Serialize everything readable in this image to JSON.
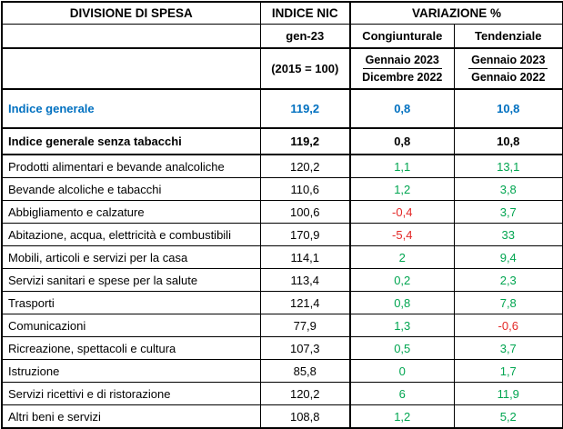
{
  "colors": {
    "accent_blue": "#0070c0",
    "positive_green": "#00a550",
    "negative_red": "#e32726",
    "border_black": "#000000"
  },
  "header": {
    "col_division": "DIVISIONE DI SPESA",
    "col_index": "INDICE NIC",
    "col_variation": "VARIAZIONE %",
    "index_period": "gen-23",
    "index_base": "(2015 = 100)",
    "sub_congiunturale": "Congiunturale",
    "sub_tendenziale": "Tendenziale",
    "congiunturale_numerator": "Gennaio 2023",
    "congiunturale_denominator": "Dicembre 2022",
    "tendenziale_numerator": "Gennaio 2023",
    "tendenziale_denominator": "Gennaio 2022"
  },
  "chart_data": {
    "type": "table",
    "title": "",
    "columns": [
      "DIVISIONE DI SPESA",
      "INDICE NIC gen-23 (2015 = 100)",
      "VARIAZIONE % Congiunturale (Gennaio 2023 / Dicembre 2022)",
      "VARIAZIONE % Tendenziale (Gennaio 2023 / Gennaio 2022)"
    ],
    "rows": [
      {
        "division": "Indice generale",
        "indice_nic": "119,2",
        "congiunturale": "0,8",
        "tendenziale": "10,8",
        "emphasis": "primary"
      },
      {
        "division": "Indice generale senza tabacchi",
        "indice_nic": "119,2",
        "congiunturale": "0,8",
        "tendenziale": "10,8",
        "emphasis": "strong"
      },
      {
        "division": "Prodotti alimentari e bevande analcoliche",
        "indice_nic": "120,2",
        "congiunturale": "1,1",
        "tendenziale": "13,1"
      },
      {
        "division": "Bevande alcoliche e tabacchi",
        "indice_nic": "110,6",
        "congiunturale": "1,2",
        "tendenziale": "3,8"
      },
      {
        "division": "Abbigliamento e calzature",
        "indice_nic": "100,6",
        "congiunturale": "-0,4",
        "tendenziale": "3,7"
      },
      {
        "division": "Abitazione, acqua, elettricità e combustibili",
        "indice_nic": "170,9",
        "congiunturale": "-5,4",
        "tendenziale": "33"
      },
      {
        "division": "Mobili, articoli e servizi per la casa",
        "indice_nic": "114,1",
        "congiunturale": "2",
        "tendenziale": "9,4"
      },
      {
        "division": "Servizi sanitari e spese per la salute",
        "indice_nic": "113,4",
        "congiunturale": "0,2",
        "tendenziale": "2,3"
      },
      {
        "division": "Trasporti",
        "indice_nic": "121,4",
        "congiunturale": "0,8",
        "tendenziale": "7,8"
      },
      {
        "division": "Comunicazioni",
        "indice_nic": "77,9",
        "congiunturale": "1,3",
        "tendenziale": "-0,6"
      },
      {
        "division": "Ricreazione, spettacoli e cultura",
        "indice_nic": "107,3",
        "congiunturale": "0,5",
        "tendenziale": "3,7"
      },
      {
        "division": "Istruzione",
        "indice_nic": "85,8",
        "congiunturale": "0",
        "tendenziale": "1,7"
      },
      {
        "division": "Servizi ricettivi e di ristorazione",
        "indice_nic": "120,2",
        "congiunturale": "6",
        "tendenziale": "11,9"
      },
      {
        "division": "Altri beni e servizi",
        "indice_nic": "108,8",
        "congiunturale": "1,2",
        "tendenziale": "5,2"
      }
    ]
  }
}
